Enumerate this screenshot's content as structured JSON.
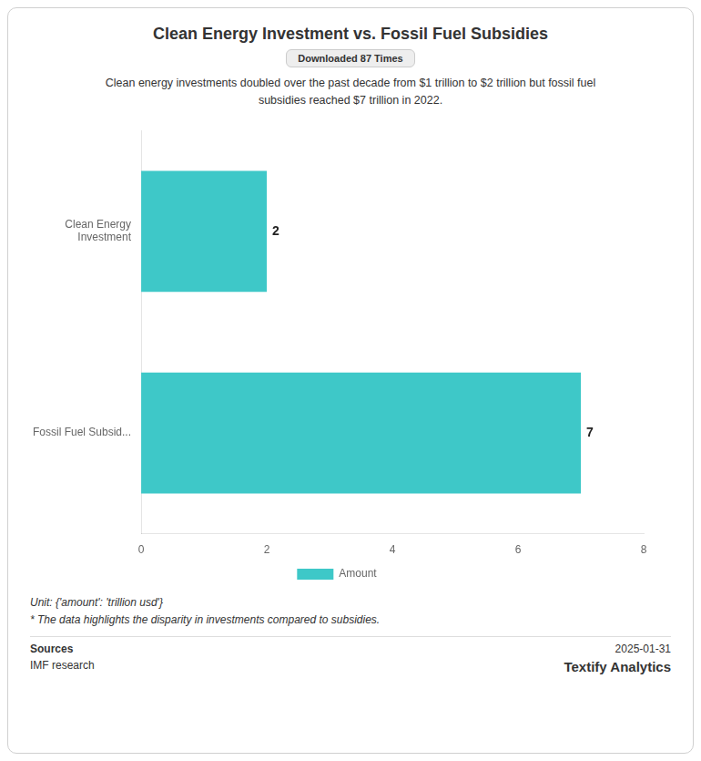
{
  "chart_data": {
    "type": "bar",
    "orientation": "horizontal",
    "title": "Clean Energy Investment vs. Fossil Fuel Subsidies",
    "subtitle": "Downloaded 87 Times",
    "annotations": [
      "Clean energy investments doubled over the past decade from $1 trillion to $2 trillion but fossil fuel",
      "subsidies reached $7 trillion in 2022.",
      "Unit: {'amount': 'trillion usd'}",
      "* The data highlights the disparity in investments compared to subsidies.",
      "Sources",
      "IMF research",
      "2025-01-31",
      "Textify Analytics"
    ],
    "categories": [
      "Fossil Fuel Subsid...",
      "Clean Energy\nInvestment"
    ],
    "series": [
      {
        "name": "Amount",
        "color": "#3ec8c8",
        "values": [
          7,
          2
        ]
      }
    ],
    "xlim": [
      0,
      8
    ],
    "xticks": [
      0,
      2,
      4,
      6,
      8
    ],
    "data_labels": true,
    "legend": "bottom",
    "grid": false
  }
}
